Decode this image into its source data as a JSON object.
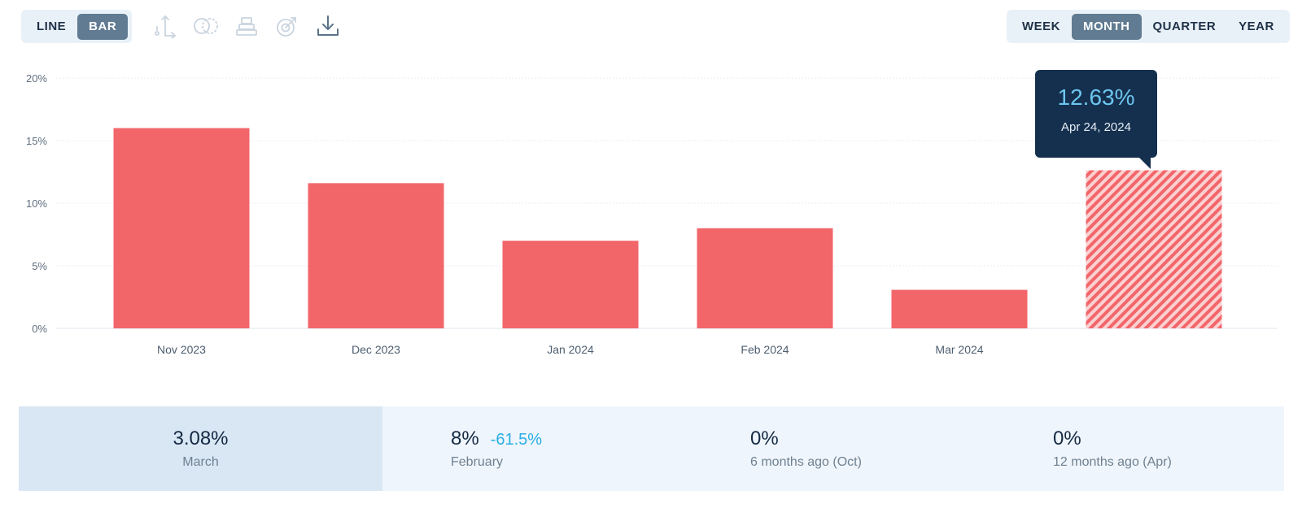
{
  "toolbar": {
    "chart_types": [
      "LINE",
      "BAR"
    ],
    "active_chart_type": "BAR",
    "periods": [
      "WEEK",
      "MONTH",
      "QUARTER",
      "YEAR"
    ],
    "active_period": "MONTH",
    "tools": [
      "axis-icon",
      "compare-icon",
      "stack-icon",
      "target-icon",
      "download-icon"
    ]
  },
  "colors": {
    "bar": "#f2666a",
    "accent": "#2aaee6",
    "tooltip_bg": "#15304e",
    "tooltip_value": "#6cc6ef"
  },
  "chart_data": {
    "type": "bar",
    "categories": [
      "Nov 2023",
      "Dec 2023",
      "Jan 2024",
      "Feb 2024",
      "Mar 2024",
      ""
    ],
    "values": [
      16.0,
      11.6,
      7.0,
      8.0,
      3.08,
      12.63
    ],
    "projected_index": 5,
    "y_ticks": [
      "0%",
      "5%",
      "10%",
      "15%",
      "20%"
    ],
    "ylim": [
      0,
      20
    ],
    "grid": true,
    "tooltip": {
      "value": "12.63%",
      "date": "Apr 24, 2024"
    }
  },
  "stats": [
    {
      "value": "3.08%",
      "label": "March",
      "active": true
    },
    {
      "value": "8%",
      "change": "-61.5%",
      "label": "February"
    },
    {
      "value": "0%",
      "label": "6 months ago (Oct)"
    },
    {
      "value": "0%",
      "label": "12 months ago (Apr)"
    }
  ]
}
